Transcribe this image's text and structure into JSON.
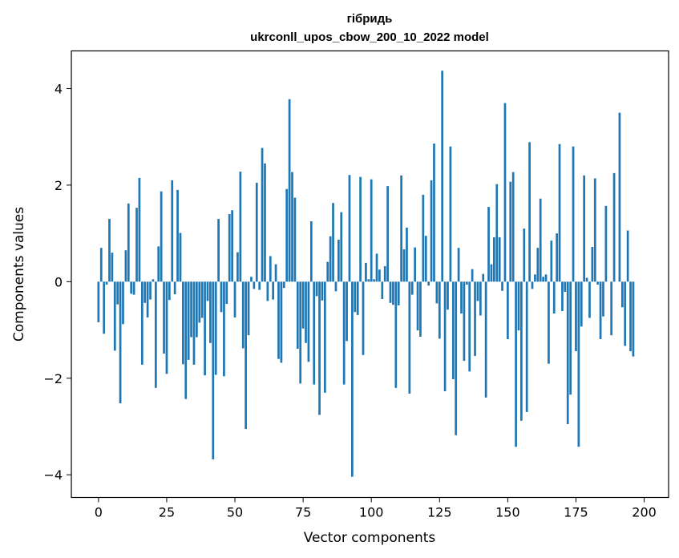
{
  "chart_data": {
    "type": "bar",
    "title": "гібридь",
    "subtitle": "ukrconll_upos_cbow_200_10_2022 model",
    "xlabel": "Vector components",
    "ylabel": "Components values",
    "xlim": [
      -9.95,
      208.95
    ],
    "ylim": [
      -4.47,
      4.78
    ],
    "xticks": [
      0,
      25,
      50,
      75,
      100,
      125,
      150,
      175,
      200
    ],
    "yticks": [
      -4,
      -2,
      0,
      2,
      4
    ],
    "ytick_labels": [
      "−4",
      "−2",
      "0",
      "2",
      "4"
    ],
    "grid": false,
    "bar_color": "#1f77b4",
    "x_start": 0,
    "values": [
      -0.84,
      0.7,
      -1.08,
      -0.06,
      1.3,
      0.6,
      -1.43,
      -0.47,
      -2.52,
      -0.88,
      0.65,
      1.62,
      -0.25,
      -0.27,
      1.53,
      2.15,
      -1.72,
      -0.44,
      -0.74,
      -0.37,
      0.05,
      -2.2,
      0.73,
      1.87,
      -1.49,
      -1.91,
      -0.38,
      2.1,
      -0.26,
      1.9,
      1.01,
      -1.71,
      -2.43,
      -1.62,
      -1.15,
      -1.72,
      -1.15,
      -0.85,
      -0.75,
      -1.94,
      -0.4,
      -1.27,
      -3.68,
      -1.93,
      1.3,
      -0.63,
      -1.96,
      -0.46,
      1.4,
      1.48,
      -0.74,
      0.61,
      2.28,
      -1.38,
      -3.05,
      -1.11,
      0.1,
      -0.15,
      2.05,
      -0.17,
      2.77,
      2.45,
      -0.4,
      0.53,
      -0.37,
      0.36,
      -1.6,
      -1.68,
      -0.13,
      1.92,
      3.78,
      2.27,
      1.74,
      -1.39,
      -2.11,
      -0.97,
      -1.27,
      -1.66,
      1.25,
      -2.13,
      -0.3,
      -2.76,
      -0.39,
      -2.3,
      0.41,
      0.94,
      1.63,
      -0.2,
      0.87,
      1.44,
      -2.13,
      -1.23,
      2.21,
      -4.04,
      -0.63,
      -0.69,
      2.17,
      -1.52,
      0.39,
      0.05,
      2.12,
      0.05,
      0.58,
      0.25,
      -0.36,
      0.32,
      1.98,
      -0.44,
      -0.48,
      -2.2,
      -0.49,
      2.2,
      0.67,
      1.12,
      -2.32,
      -0.27,
      0.71,
      -1.01,
      -1.14,
      1.8,
      0.95,
      -0.08,
      2.1,
      2.86,
      -0.45,
      -1.18,
      4.37,
      -2.27,
      -0.58,
      2.8,
      -2.02,
      -3.18,
      0.7,
      -0.66,
      -1.64,
      -0.06,
      -1.86,
      0.26,
      -1.54,
      -0.4,
      -0.7,
      0.16,
      -2.4,
      1.55,
      0.36,
      0.92,
      2.02,
      0.92,
      -0.19,
      3.7,
      -1.19,
      2.07,
      2.27,
      -3.42,
      -1.01,
      -2.88,
      1.1,
      -2.7,
      2.89,
      -0.15,
      0.15,
      0.7,
      1.72,
      0.1,
      0.15,
      -1.7,
      0.85,
      -0.66,
      1.0,
      2.85,
      -0.61,
      -0.21,
      -2.95,
      -2.34,
      2.8,
      -1.44,
      -3.42,
      -0.93,
      2.2,
      0.08,
      -0.75,
      0.72,
      2.14,
      -0.06,
      -1.19,
      -0.72,
      1.57,
      0.0,
      -1.11,
      2.25,
      0.0,
      3.5,
      -0.53,
      -1.33,
      1.06,
      -1.44,
      -1.55
    ]
  }
}
